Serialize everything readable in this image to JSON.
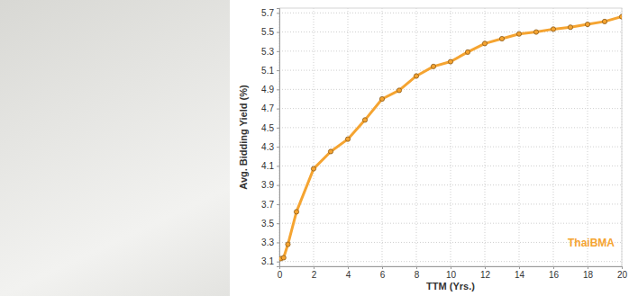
{
  "chart_data": {
    "type": "line",
    "x_label": "TTM (Yrs.)",
    "y_label": "Avg. Bidding Yield (%)",
    "annotations": [
      "ThaiBMA"
    ],
    "x": [
      0.08,
      0.25,
      0.5,
      1,
      2,
      3,
      4,
      5,
      6,
      7,
      8,
      9,
      10,
      11,
      12,
      13,
      14,
      15,
      16,
      17,
      18,
      19,
      20
    ],
    "values": [
      3.13,
      3.14,
      3.28,
      3.62,
      4.07,
      4.25,
      4.38,
      4.58,
      4.8,
      4.89,
      5.04,
      5.14,
      5.19,
      5.29,
      5.38,
      5.43,
      5.48,
      5.5,
      5.53,
      5.55,
      5.58,
      5.61,
      5.66
    ],
    "color": "#f5a431",
    "marker": "circle",
    "xlim": [
      0,
      20
    ],
    "ylim": [
      3.05,
      5.75
    ],
    "xticks": [
      0,
      2,
      4,
      6,
      8,
      10,
      12,
      14,
      16,
      18,
      20
    ],
    "yticks": [
      3.1,
      3.3,
      3.5,
      3.7,
      3.9,
      4.1,
      4.3,
      4.5,
      4.7,
      4.9,
      5.1,
      5.3,
      5.5,
      5.7
    ],
    "grid": true
  }
}
